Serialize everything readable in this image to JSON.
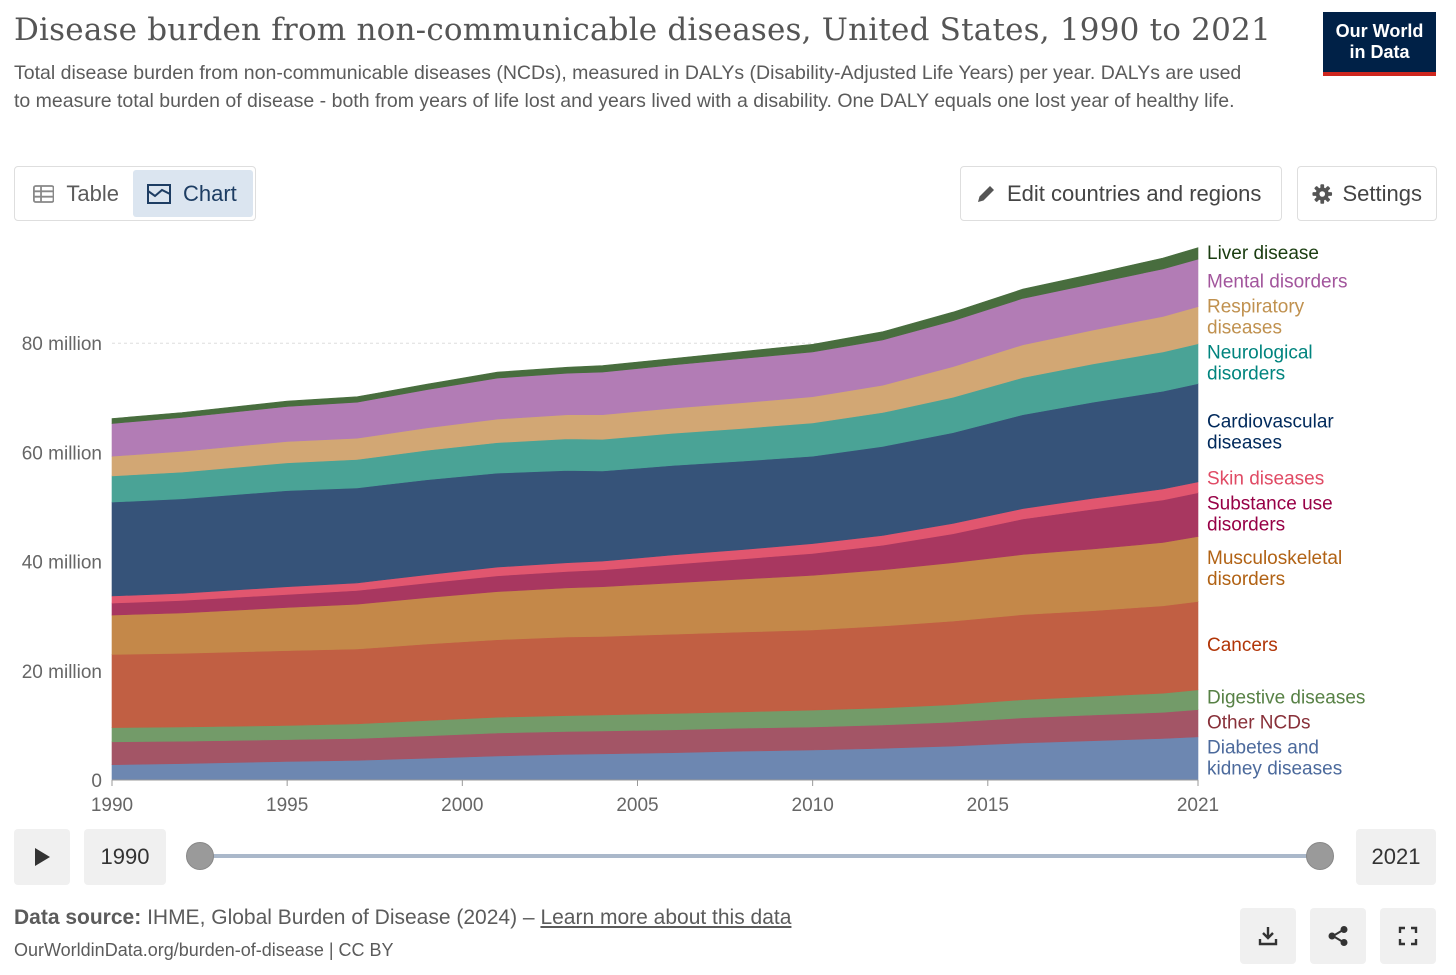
{
  "header": {
    "title": "Disease burden from non-communicable diseases, United States, 1990 to 2021",
    "subtitle": "Total disease burden from non-communicable diseases (NCDs), measured in DALYs (Disability-Adjusted Life Years) per year. DALYs are used to measure total burden of disease - both from years of life lost and years lived with a disability. One DALY equals one lost year of healthy life.",
    "logo_line1": "Our World",
    "logo_line2": "in Data"
  },
  "tabs": {
    "table_label": "Table",
    "chart_label": "Chart",
    "active": "chart"
  },
  "buttons": {
    "edit_label": "Edit countries and regions",
    "settings_label": "Settings"
  },
  "timeline": {
    "start_year": "1990",
    "end_year": "2021"
  },
  "footer": {
    "source_prefix": "Data source:",
    "source_text": "IHME, Global Burden of Disease (2024) –",
    "learn_more": "Learn more about this data",
    "url": "OurWorldinData.org/burden-of-disease | CC BY"
  },
  "chart_data": {
    "type": "area",
    "stacked": true,
    "ylim": [
      0,
      100000000
    ],
    "xlim": [
      1990,
      2021
    ],
    "y_ticks": [
      0,
      20000000,
      40000000,
      60000000,
      80000000
    ],
    "y_tick_labels": [
      "0",
      "20 million",
      "40 million",
      "60 million",
      "80 million"
    ],
    "x_ticks": [
      1990,
      1995,
      2000,
      2005,
      2010,
      2021
    ],
    "x_tick_labels": [
      "1990",
      "1995",
      "2000",
      "2005",
      "2010",
      "2021"
    ],
    "x_ticks_extra": [
      2015
    ],
    "x_tick_labels_extra": [
      "2015"
    ],
    "grid": "horizontal dashed",
    "legend": "right",
    "x": [
      1990,
      1992,
      1995,
      1997,
      1999,
      2001,
      2003,
      2004,
      2006,
      2008,
      2010,
      2012,
      2014,
      2016,
      2018,
      2020,
      2021
    ],
    "series": [
      {
        "name": "Diabetes and kidney diseases",
        "label_lines": [
          "Diabetes and",
          "kidney diseases"
        ],
        "color": "#6d87b1",
        "label_color": "#4c6a9c",
        "values": [
          2.8,
          3.0,
          3.4,
          3.6,
          4.0,
          4.4,
          4.7,
          4.8,
          5.0,
          5.3,
          5.5,
          5.8,
          6.2,
          6.8,
          7.2,
          7.6,
          7.9
        ]
      },
      {
        "name": "Other NCDs",
        "label_lines": [
          "Other NCDs"
        ],
        "color": "#a35566",
        "label_color": "#883039",
        "values": [
          4.2,
          4.1,
          4.0,
          4.0,
          4.1,
          4.2,
          4.2,
          4.2,
          4.2,
          4.2,
          4.2,
          4.3,
          4.4,
          4.6,
          4.7,
          4.8,
          5.0
        ]
      },
      {
        "name": "Digestive diseases",
        "label_lines": [
          "Digestive diseases"
        ],
        "color": "#739b69",
        "label_color": "#578145",
        "values": [
          2.6,
          2.6,
          2.6,
          2.7,
          2.8,
          2.9,
          2.9,
          2.9,
          3.0,
          3.0,
          3.1,
          3.1,
          3.2,
          3.3,
          3.4,
          3.5,
          3.6
        ]
      },
      {
        "name": "Cancers",
        "label_lines": [
          "Cancers"
        ],
        "color": "#c15f43",
        "label_color": "#b13507",
        "values": [
          13.4,
          13.5,
          13.7,
          13.7,
          14.0,
          14.2,
          14.4,
          14.4,
          14.5,
          14.6,
          14.7,
          15.0,
          15.3,
          15.6,
          15.7,
          16.0,
          16.2
        ]
      },
      {
        "name": "Musculoskeletal disorders",
        "label_lines": [
          "Musculoskeletal",
          "disorders"
        ],
        "color": "#c48849",
        "label_color": "#b16214",
        "values": [
          7.2,
          7.4,
          7.9,
          8.2,
          8.5,
          8.8,
          9.0,
          9.1,
          9.4,
          9.7,
          10.0,
          10.3,
          10.7,
          11.0,
          11.3,
          11.6,
          11.9
        ]
      },
      {
        "name": "Substance use disorders",
        "label_lines": [
          "Substance use",
          "disorders"
        ],
        "color": "#a83760",
        "label_color": "#970046",
        "values": [
          2.2,
          2.3,
          2.4,
          2.5,
          2.7,
          2.9,
          3.0,
          3.1,
          3.4,
          3.7,
          4.0,
          4.5,
          5.3,
          6.5,
          7.3,
          7.8,
          8.0
        ]
      },
      {
        "name": "Skin diseases",
        "label_lines": [
          "Skin diseases"
        ],
        "color": "#e1566f",
        "label_color": "#e04a64",
        "values": [
          1.3,
          1.3,
          1.4,
          1.4,
          1.5,
          1.6,
          1.6,
          1.6,
          1.7,
          1.7,
          1.8,
          1.8,
          1.9,
          1.9,
          2.0,
          2.0,
          2.0
        ]
      },
      {
        "name": "Cardiovascular diseases",
        "label_lines": [
          "Cardiovascular",
          "diseases"
        ],
        "color": "#365379",
        "label_color": "#00295b",
        "values": [
          17.2,
          17.3,
          17.6,
          17.4,
          17.4,
          17.2,
          16.9,
          16.5,
          16.4,
          16.2,
          16.0,
          16.3,
          16.6,
          17.2,
          17.6,
          17.9,
          18.0
        ]
      },
      {
        "name": "Neurological disorders",
        "label_lines": [
          "Neurological",
          "disorders"
        ],
        "color": "#4aa396",
        "label_color": "#00847e",
        "values": [
          4.8,
          4.9,
          5.1,
          5.2,
          5.4,
          5.6,
          5.8,
          5.8,
          5.9,
          6.0,
          6.1,
          6.2,
          6.5,
          6.8,
          7.0,
          7.2,
          7.3
        ]
      },
      {
        "name": "Respiratory diseases",
        "label_lines": [
          "Respiratory",
          "diseases"
        ],
        "color": "#d2a774",
        "label_color": "#c0914f",
        "values": [
          3.6,
          3.8,
          3.9,
          3.9,
          4.1,
          4.3,
          4.4,
          4.5,
          4.6,
          4.7,
          4.8,
          5.0,
          5.6,
          6.0,
          6.2,
          6.5,
          6.8
        ]
      },
      {
        "name": "Mental disorders",
        "label_lines": [
          "Mental disorders"
        ],
        "color": "#b27cb5",
        "label_color": "#a2559c",
        "values": [
          6.0,
          6.2,
          6.4,
          6.6,
          7.0,
          7.5,
          7.6,
          7.8,
          7.9,
          8.1,
          8.2,
          8.3,
          8.4,
          8.5,
          8.5,
          8.7,
          8.7
        ]
      },
      {
        "name": "Liver disease",
        "label_lines": [
          "Liver disease"
        ],
        "color": "#486d3e",
        "label_color": "#1a3c10",
        "values": [
          0.9,
          0.9,
          1.0,
          1.0,
          1.0,
          1.1,
          1.1,
          1.2,
          1.2,
          1.3,
          1.4,
          1.5,
          1.6,
          1.7,
          1.8,
          2.0,
          2.1
        ]
      }
    ],
    "value_unit": "million"
  }
}
